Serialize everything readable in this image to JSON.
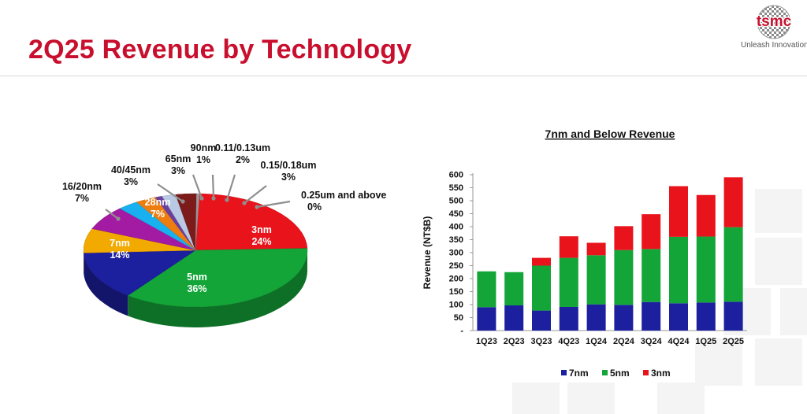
{
  "page": {
    "title": "2Q25 Revenue by Technology",
    "logo_text": "tsmc",
    "tagline": "Unleash Innovation",
    "accent": "#c8102e"
  },
  "chart_data": [
    {
      "type": "pie",
      "title": "",
      "slices": [
        {
          "label": "3nm",
          "value": 24,
          "pct": "24%",
          "color": "#e8131b"
        },
        {
          "label": "5nm",
          "value": 36,
          "pct": "36%",
          "color": "#13a538"
        },
        {
          "label": "7nm",
          "value": 14,
          "pct": "14%",
          "color": "#1c1f9e"
        },
        {
          "label": "16/20nm",
          "value": 7,
          "pct": "7%",
          "color": "#f2a900"
        },
        {
          "label": "28nm",
          "value": 7,
          "pct": "7%",
          "color": "#a31aa3"
        },
        {
          "label": "40/45nm",
          "value": 3,
          "pct": "3%",
          "color": "#18b0ee"
        },
        {
          "label": "65nm",
          "value": 3,
          "pct": "3%",
          "color": "#ee7d10"
        },
        {
          "label": "90nm",
          "value": 1,
          "pct": "1%",
          "color": "#6a3fa0"
        },
        {
          "label": "0.11/0.13um",
          "value": 2,
          "pct": "2%",
          "color": "#b9c9e4"
        },
        {
          "label": "0.15/0.18um",
          "value": 3,
          "pct": "3%",
          "color": "#7d1a1a"
        },
        {
          "label": "0.25um and above",
          "value": 0,
          "pct": "0%",
          "color": "#9a9a9a"
        }
      ]
    },
    {
      "type": "bar",
      "stacked": true,
      "title": "7nm and Below Revenue",
      "xlabel": "",
      "ylabel": "Revenue (NT$B)",
      "ylim": [
        0,
        600
      ],
      "ytick_step": 50,
      "categories": [
        "1Q23",
        "2Q23",
        "3Q23",
        "4Q23",
        "1Q24",
        "2Q24",
        "3Q24",
        "4Q24",
        "1Q25",
        "2Q25"
      ],
      "series": [
        {
          "name": "7nm",
          "color": "#1c1f9e",
          "values": [
            90,
            97,
            77,
            91,
            101,
            99,
            110,
            105,
            108,
            111
          ]
        },
        {
          "name": "5nm",
          "color": "#13a538",
          "values": [
            138,
            128,
            173,
            189,
            189,
            211,
            204,
            256,
            254,
            287
          ]
        },
        {
          "name": "3nm",
          "color": "#e8131b",
          "values": [
            0,
            0,
            30,
            83,
            48,
            92,
            134,
            195,
            160,
            192
          ]
        }
      ],
      "legend_position": "bottom",
      "grid": false
    }
  ]
}
